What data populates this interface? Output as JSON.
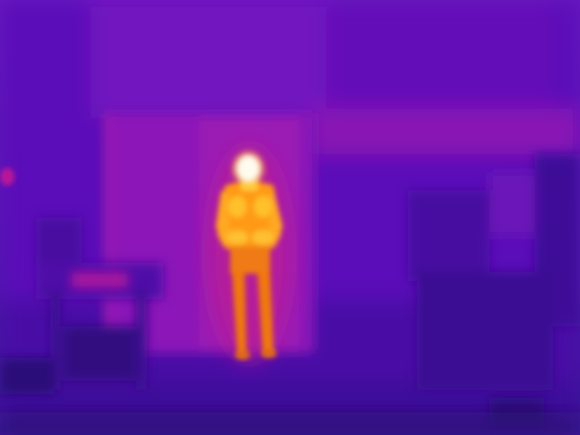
{
  "image": {
    "kind": "thermal-camera-frame",
    "palette": [
      "#2a0a7a",
      "#4a0ea8",
      "#7a14c0",
      "#b0189c",
      "#e0306a",
      "#ff7a1a",
      "#ffc020",
      "#fff4c0"
    ],
    "colors": {
      "background_cold": "#3a0c98",
      "wall_mid": "#6a12c0",
      "door_warm": "#9a1ab8",
      "person_body": "#ff8a10",
      "person_hot": "#ffd030",
      "face_hottest": "#fff8e0"
    }
  }
}
